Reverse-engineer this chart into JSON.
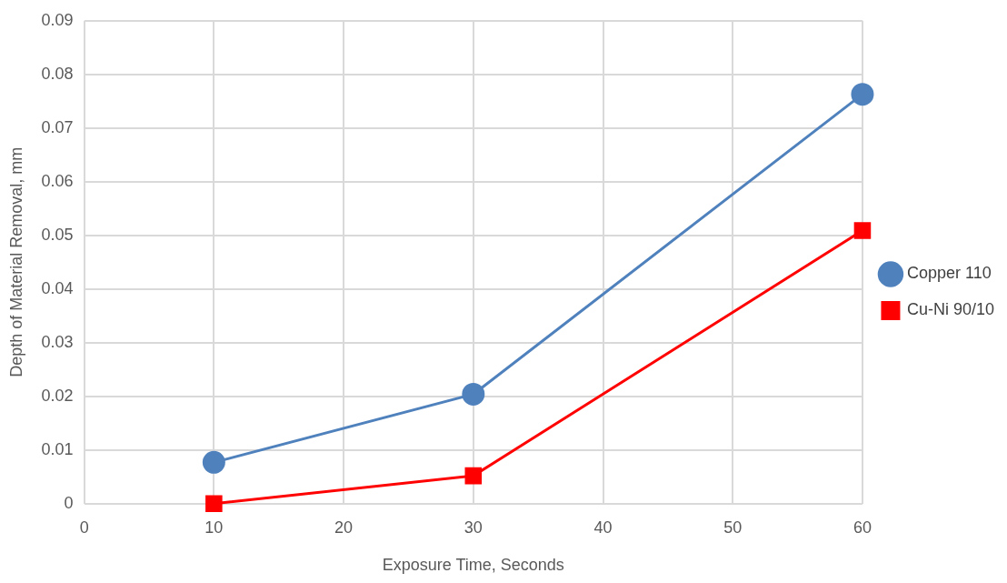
{
  "chart_data": {
    "type": "line",
    "xlabel": "Exposure Time, Seconds",
    "ylabel": "Depth of Material Removal, mm",
    "x": [
      10,
      30,
      60
    ],
    "series": [
      {
        "name": "Copper 110",
        "color": "#4f81bd",
        "marker": "circle",
        "values": [
          0.0077,
          0.0204,
          0.0763
        ]
      },
      {
        "name": "Cu-Ni 90/10",
        "color": "#ff0000",
        "marker": "square",
        "values": [
          0,
          0.0052,
          0.0509
        ]
      }
    ],
    "xlim": [
      0,
      60
    ],
    "xticks": [
      0,
      10,
      20,
      30,
      40,
      50,
      60
    ],
    "ylim": [
      0,
      0.09
    ],
    "yticks": [
      0,
      0.01,
      0.02,
      0.03,
      0.04,
      0.05,
      0.06,
      0.07,
      0.08,
      0.09
    ],
    "grid": true,
    "legend": "right"
  }
}
